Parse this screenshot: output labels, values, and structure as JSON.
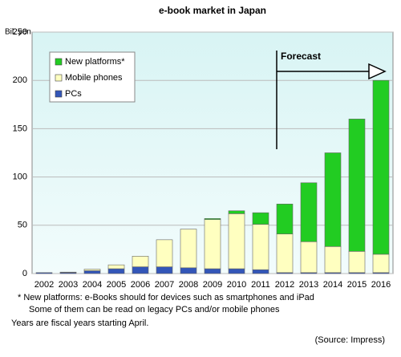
{
  "chart_data": {
    "type": "stacked_bar",
    "title": "e-book market in Japan",
    "y_label": "Bil. yen",
    "categories": [
      "2002",
      "2003",
      "2004",
      "2005",
      "2006",
      "2007",
      "2008",
      "2009",
      "2010",
      "2011",
      "2012",
      "2013",
      "2014",
      "2015",
      "2016"
    ],
    "series": [
      {
        "name": "PCs",
        "color": "#3356b8",
        "values": [
          1,
          1,
          3,
          5,
          7,
          7,
          6,
          5,
          5,
          4,
          1,
          1,
          1,
          1,
          1
        ]
      },
      {
        "name": "Mobile phones",
        "color": "#ffffc0",
        "values": [
          0,
          0.5,
          1.5,
          4,
          11,
          28,
          40,
          51,
          57,
          47,
          40,
          32,
          27,
          22,
          19
        ]
      },
      {
        "name": "New platforms*",
        "color": "#22cc22",
        "values": [
          0,
          0,
          0,
          0,
          0,
          0,
          0,
          1,
          3,
          12,
          31,
          61,
          97,
          137,
          180
        ]
      }
    ],
    "ylim": [
      0,
      250
    ],
    "yticks": [
      0,
      50,
      100,
      150,
      200,
      250
    ],
    "grid": true,
    "legend": "upper-left",
    "annotation": "Forecast",
    "footnotes": [
      "* New platforms: e-Books should for devices such as smartphones and iPad",
      "Some of them can be read on legacy PCs and/or mobile phones",
      "Years are fiscal years starting April."
    ],
    "source": "(Source: Impress)"
  }
}
